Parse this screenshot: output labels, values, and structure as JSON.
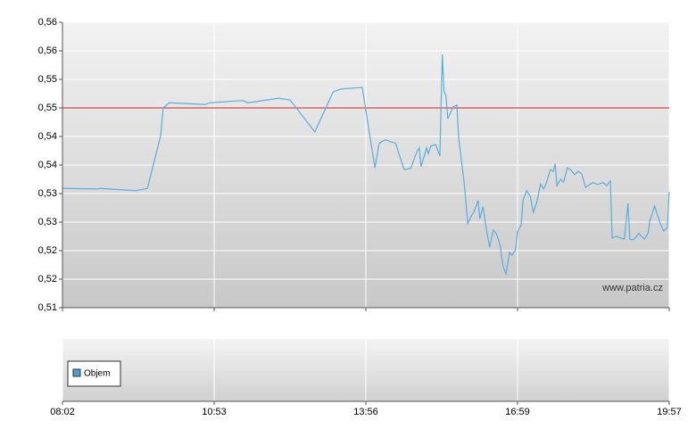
{
  "chart_data": {
    "type": "line",
    "xlim": [
      0,
      100
    ],
    "xticks": [
      {
        "value": 0,
        "label": "08:02"
      },
      {
        "value": 25,
        "label": "10:53"
      },
      {
        "value": 50,
        "label": "13:56"
      },
      {
        "value": 75,
        "label": "16:59"
      },
      {
        "value": 100,
        "label": "19:57"
      }
    ],
    "ylim": [
      0.51,
      0.56
    ],
    "yticks": [
      {
        "value": 0.51,
        "label": "0,51"
      },
      {
        "value": 0.515,
        "label": "0,52"
      },
      {
        "value": 0.52,
        "label": "0,52"
      },
      {
        "value": 0.525,
        "label": "0,53"
      },
      {
        "value": 0.53,
        "label": "0,53"
      },
      {
        "value": 0.535,
        "label": "0,54"
      },
      {
        "value": 0.54,
        "label": "0,54"
      },
      {
        "value": 0.545,
        "label": "0,55"
      },
      {
        "value": 0.55,
        "label": "0,55"
      },
      {
        "value": 0.555,
        "label": "0,56"
      },
      {
        "value": 0.56,
        "label": "0,56"
      }
    ],
    "grid": true,
    "reference_line": 0.545,
    "reference_color": "#d42020",
    "watermark": "www.patria.cz",
    "volume_legend": "Objem",
    "volume_color": "#4d9ed4",
    "series": [
      {
        "color": "#5aaedc",
        "x": [
          0,
          5.9,
          6.3,
          12.1,
          14.0,
          16.2,
          16.6,
          17.6,
          23.5,
          24.3,
          29.7,
          30.6,
          35.6,
          37.5,
          41.6,
          44.6,
          45.9,
          49.4,
          51.5,
          52.2,
          53.2,
          54.9,
          56.3,
          57.4,
          58.4,
          58.8,
          59.1,
          60.0,
          60.3,
          60.7,
          61.5,
          62.2,
          62.6,
          62.9,
          63.2,
          63.5,
          64.4,
          65.0,
          65.3,
          66.2,
          66.8,
          67.4,
          67.9,
          68.5,
          68.8,
          69.3,
          69.9,
          70.4,
          71.0,
          71.5,
          72.1,
          72.6,
          73.1,
          73.7,
          74.1,
          74.7,
          75.0,
          75.6,
          75.9,
          76.5,
          77.1,
          77.6,
          78.2,
          78.8,
          79.3,
          79.7,
          80.4,
          80.9,
          81.2,
          81.5,
          82.1,
          82.6,
          83.2,
          83.8,
          84.4,
          85.0,
          85.6,
          86.2,
          87.4,
          88.2,
          89.1,
          89.7,
          90.3,
          90.6,
          91.2,
          92.6,
          93.2,
          93.5,
          94.1,
          95.0,
          95.9,
          96.5,
          96.8,
          97.6,
          98.5,
          99.1,
          99.7,
          100
        ],
        "values": [
          0.5309,
          0.5308,
          0.5309,
          0.5305,
          0.5309,
          0.5402,
          0.545,
          0.5459,
          0.5456,
          0.5459,
          0.5463,
          0.5459,
          0.5467,
          0.5464,
          0.5408,
          0.5478,
          0.5483,
          0.5486,
          0.5345,
          0.5388,
          0.5394,
          0.5388,
          0.5342,
          0.5344,
          0.5373,
          0.538,
          0.5347,
          0.538,
          0.537,
          0.5383,
          0.5386,
          0.5366,
          0.5544,
          0.5478,
          0.5472,
          0.5431,
          0.5452,
          0.5455,
          0.5397,
          0.5319,
          0.5248,
          0.5261,
          0.527,
          0.5288,
          0.5256,
          0.5277,
          0.5236,
          0.5206,
          0.5236,
          0.523,
          0.5211,
          0.5173,
          0.5159,
          0.5197,
          0.5192,
          0.5202,
          0.5233,
          0.5245,
          0.5288,
          0.5305,
          0.5295,
          0.5267,
          0.5286,
          0.5317,
          0.5308,
          0.5317,
          0.5342,
          0.5339,
          0.5352,
          0.5314,
          0.5325,
          0.532,
          0.5345,
          0.5341,
          0.5333,
          0.5339,
          0.5334,
          0.5311,
          0.5319,
          0.5316,
          0.5319,
          0.5314,
          0.5322,
          0.5222,
          0.5225,
          0.522,
          0.5283,
          0.522,
          0.5219,
          0.523,
          0.522,
          0.523,
          0.5252,
          0.5278,
          0.5248,
          0.5234,
          0.5241,
          0.5303
        ]
      }
    ]
  }
}
